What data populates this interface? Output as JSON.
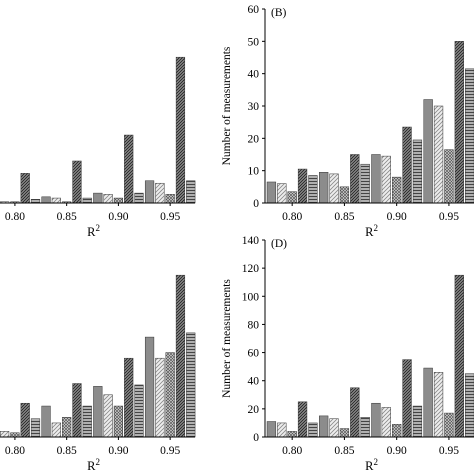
{
  "colors": {
    "s1": "#8c8c8c",
    "s2": "#d4d4d4",
    "s3": "#555555",
    "s4": "#a8a8a8",
    "s5": "#7e7e7e",
    "axis": "#000000"
  },
  "chart_data": [
    {
      "type": "bar",
      "panel_label": "",
      "categories": [
        "0.80",
        "0.85",
        "0.90",
        "0.95"
      ],
      "xlabel": "R",
      "xlabel_sup": "2",
      "ylabel": "",
      "ylim": [
        0,
        70
      ],
      "yticks": [],
      "series": [
        {
          "values": [
            2,
            2.5,
            4,
            9
          ],
          "pattern": "s1"
        },
        {
          "values": [
            0.5,
            2,
            3.5,
            8
          ],
          "pattern": "s2"
        },
        {
          "values": [
            0.5,
            0.5,
            2,
            3.5
          ],
          "pattern": "s3"
        },
        {
          "values": [
            12,
            17,
            27.5,
            59
          ],
          "pattern": "s4"
        },
        {
          "values": [
            1.5,
            2,
            4,
            9
          ],
          "pattern": "s5"
        }
      ]
    },
    {
      "type": "bar",
      "panel_label": "(B)",
      "categories": [
        "0.80",
        "0.85",
        "0.90",
        "0.95"
      ],
      "xlabel": "R",
      "xlabel_sup": "2",
      "ylabel": "Number of measurements",
      "ylim": [
        0,
        60
      ],
      "yticks": [
        "0",
        "10",
        "20",
        "30",
        "40",
        "50",
        "60"
      ],
      "series": [
        {
          "values": [
            6.5,
            9.5,
            15,
            32
          ],
          "pattern": "s1"
        },
        {
          "values": [
            6,
            9,
            14.5,
            30
          ],
          "pattern": "s2"
        },
        {
          "values": [
            3.5,
            5,
            8,
            16.5
          ],
          "pattern": "s3"
        },
        {
          "values": [
            10.5,
            15,
            23.5,
            50
          ],
          "pattern": "s4"
        },
        {
          "values": [
            8.5,
            12,
            19.5,
            41.5
          ],
          "pattern": "s5"
        }
      ]
    },
    {
      "type": "bar",
      "panel_label": "",
      "categories": [
        "0.80",
        "0.85",
        "0.90",
        "0.95"
      ],
      "xlabel": "R",
      "xlabel_sup": "2",
      "ylabel": "",
      "ylim": [
        0,
        140
      ],
      "yticks": [],
      "series": [
        {
          "values": [
            8,
            22,
            36,
            71
          ],
          "pattern": "s1"
        },
        {
          "values": [
            4,
            10,
            30,
            56
          ],
          "pattern": "s2"
        },
        {
          "values": [
            3,
            14,
            22,
            60
          ],
          "pattern": "s3"
        },
        {
          "values": [
            24,
            38,
            56,
            115
          ],
          "pattern": "s4"
        },
        {
          "values": [
            13,
            22,
            37,
            74
          ],
          "pattern": "s5"
        }
      ]
    },
    {
      "type": "bar",
      "panel_label": "(D)",
      "categories": [
        "0.80",
        "0.85",
        "0.90",
        "0.95"
      ],
      "xlabel": "R",
      "xlabel_sup": "2",
      "ylabel": "Number of measurements",
      "ylim": [
        0,
        140
      ],
      "yticks": [
        "0",
        "20",
        "40",
        "60",
        "80",
        "100",
        "120",
        "140"
      ],
      "series": [
        {
          "values": [
            11,
            15,
            24,
            49
          ],
          "pattern": "s1"
        },
        {
          "values": [
            10,
            13,
            21,
            46
          ],
          "pattern": "s2"
        },
        {
          "values": [
            4,
            6,
            9,
            17
          ],
          "pattern": "s3"
        },
        {
          "values": [
            25,
            35,
            55,
            115
          ],
          "pattern": "s4"
        },
        {
          "values": [
            10,
            14,
            22,
            45
          ],
          "pattern": "s5"
        }
      ]
    }
  ]
}
